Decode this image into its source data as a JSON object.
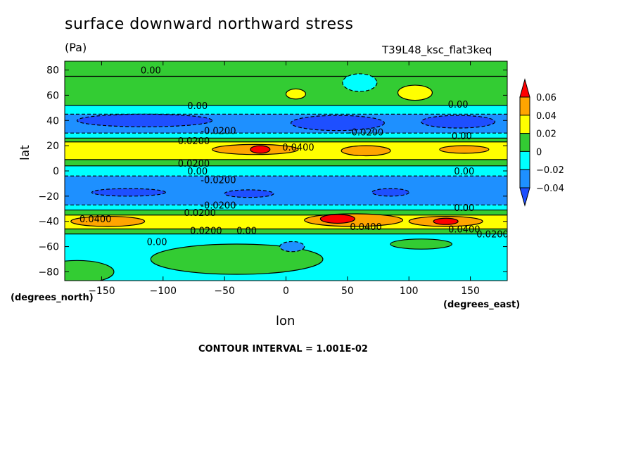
{
  "title": "surface downward northward stress",
  "units": "(Pa)",
  "dataset": "T39L48_ksc_flat3keq",
  "contour_interval": "CONTOUR INTERVAL = 1.001E-02",
  "chart_data": {
    "type": "heatmap",
    "title": "surface downward northward stress",
    "xlabel": "lon",
    "ylabel": "lat",
    "x_units_note": "(degrees_east)",
    "y_units_note": "(degrees_north)",
    "xlim": [
      -180,
      180
    ],
    "ylim": [
      -87,
      87
    ],
    "xticks": [
      -150,
      -100,
      -50,
      0,
      50,
      100,
      150
    ],
    "yticks": [
      -80,
      -60,
      -40,
      -20,
      0,
      20,
      40,
      60,
      80
    ],
    "colorbar": {
      "levels": [
        "0.06",
        "0.04",
        "0.02",
        "0",
        "-0.02",
        "-0.04"
      ],
      "colors": [
        "#ff0000",
        "#ffa500",
        "#ffff00",
        "#33cc33",
        "#00ffff",
        "#1e90ff",
        "#1e4fff"
      ]
    },
    "bands": [
      {
        "lat": [
          75,
          87
        ],
        "value": 0.005,
        "color": "#33cc33"
      },
      {
        "lat": [
          52,
          75
        ],
        "value": 0.008,
        "color": "#33cc33"
      },
      {
        "lat": [
          45,
          52
        ],
        "value": -0.01,
        "color": "#00ffff"
      },
      {
        "lat": [
          30,
          45
        ],
        "value": -0.03,
        "color": "#1e90ff"
      },
      {
        "lat": [
          26,
          30
        ],
        "value": -0.01,
        "color": "#00ffff"
      },
      {
        "lat": [
          23,
          26
        ],
        "value": 0.01,
        "color": "#33cc33"
      },
      {
        "lat": [
          9,
          23
        ],
        "value": 0.03,
        "color": "#ffff00"
      },
      {
        "lat": [
          4,
          9
        ],
        "value": 0.01,
        "color": "#33cc33"
      },
      {
        "lat": [
          -4,
          4
        ],
        "value": -0.01,
        "color": "#00ffff"
      },
      {
        "lat": [
          -27,
          -4
        ],
        "value": -0.03,
        "color": "#1e90ff"
      },
      {
        "lat": [
          -31,
          -27
        ],
        "value": -0.01,
        "color": "#00ffff"
      },
      {
        "lat": [
          -35,
          -31
        ],
        "value": 0.01,
        "color": "#33cc33"
      },
      {
        "lat": [
          -46,
          -35
        ],
        "value": 0.03,
        "color": "#ffff00"
      },
      {
        "lat": [
          -50,
          -46
        ],
        "value": 0.01,
        "color": "#33cc33"
      },
      {
        "lat": [
          -87,
          -50
        ],
        "value": -0.01,
        "color": "#00ffff"
      }
    ],
    "blobs": [
      {
        "lon": -115,
        "lat": 40,
        "rlon": 55,
        "rlat": 5,
        "value": -0.045,
        "color": "#1e4fff"
      },
      {
        "lon": 42,
        "lat": 38,
        "rlon": 38,
        "rlat": 6,
        "value": -0.045,
        "color": "#1e4fff"
      },
      {
        "lon": 140,
        "lat": 39,
        "rlon": 30,
        "rlat": 5,
        "value": -0.045,
        "color": "#1e4fff"
      },
      {
        "lon": -128,
        "lat": -17,
        "rlon": 30,
        "rlat": 3,
        "value": -0.045,
        "color": "#1e4fff"
      },
      {
        "lon": -30,
        "lat": -18,
        "rlon": 20,
        "rlat": 3,
        "value": -0.045,
        "color": "#1e4fff"
      },
      {
        "lon": 85,
        "lat": -17,
        "rlon": 15,
        "rlat": 3,
        "value": -0.045,
        "color": "#1e4fff"
      },
      {
        "lon": -25,
        "lat": 17,
        "rlon": 35,
        "rlat": 4,
        "value": 0.045,
        "color": "#ffa500"
      },
      {
        "lon": 65,
        "lat": 16,
        "rlon": 20,
        "rlat": 4,
        "value": 0.045,
        "color": "#ffa500"
      },
      {
        "lon": 145,
        "lat": 17,
        "rlon": 20,
        "rlat": 3,
        "value": 0.045,
        "color": "#ffa500"
      },
      {
        "lon": -145,
        "lat": -40,
        "rlon": 30,
        "rlat": 4,
        "value": 0.045,
        "color": "#ffa500"
      },
      {
        "lon": 55,
        "lat": -39,
        "rlon": 40,
        "rlat": 5,
        "value": 0.045,
        "color": "#ffa500"
      },
      {
        "lon": 130,
        "lat": -40,
        "rlon": 30,
        "rlat": 4,
        "value": 0.045,
        "color": "#ffa500"
      },
      {
        "lon": -21,
        "lat": 17,
        "rlon": 8,
        "rlat": 3,
        "value": 0.065,
        "color": "#ff0000"
      },
      {
        "lon": 42,
        "lat": -38,
        "rlon": 14,
        "rlat": 3.5,
        "value": 0.065,
        "color": "#ff0000"
      },
      {
        "lon": 130,
        "lat": -40,
        "rlon": 10,
        "rlat": 2.5,
        "value": 0.065,
        "color": "#ff0000"
      },
      {
        "lon": 60,
        "lat": 70,
        "rlon": 14,
        "rlat": 7,
        "value": -0.01,
        "color": "#00ffff"
      },
      {
        "lon": 105,
        "lat": 62,
        "rlon": 14,
        "rlat": 6,
        "value": 0.025,
        "color": "#ffff00"
      },
      {
        "lon": 8,
        "lat": 61,
        "rlon": 8,
        "rlat": 4,
        "value": 0.025,
        "color": "#ffff00"
      },
      {
        "lon": -40,
        "lat": -70,
        "rlon": 70,
        "rlat": 12,
        "value": 0.005,
        "color": "#33cc33"
      },
      {
        "lon": -170,
        "lat": -80,
        "rlon": 30,
        "rlat": 9,
        "value": 0.005,
        "color": "#33cc33"
      },
      {
        "lon": 5,
        "lat": -60,
        "rlon": 10,
        "rlat": 4,
        "value": -0.025,
        "color": "#1e90ff"
      },
      {
        "lon": 110,
        "lat": -58,
        "rlon": 25,
        "rlat": 4,
        "value": 0.005,
        "color": "#33cc33"
      }
    ],
    "contour_labels": [
      {
        "text": "0.00",
        "lon": -110,
        "lat": 80
      },
      {
        "text": "0.00",
        "lon": -72,
        "lat": 52
      },
      {
        "text": "-0.0200",
        "lon": -55,
        "lat": 32
      },
      {
        "text": "0.0200",
        "lon": -75,
        "lat": 24
      },
      {
        "text": "0.0400",
        "lon": 10,
        "lat": 19
      },
      {
        "text": "-0.0200",
        "lon": 65,
        "lat": 31
      },
      {
        "text": "0.00",
        "lon": 140,
        "lat": 53
      },
      {
        "text": "0.00",
        "lon": 143,
        "lat": 28
      },
      {
        "text": "0.0200",
        "lon": -75,
        "lat": 6
      },
      {
        "text": "0.00",
        "lon": -72,
        "lat": 0
      },
      {
        "text": "-0.0200",
        "lon": -55,
        "lat": -7
      },
      {
        "text": "0.00",
        "lon": 145,
        "lat": 0
      },
      {
        "text": "-0.0200",
        "lon": -55,
        "lat": -27
      },
      {
        "text": "0.0200",
        "lon": -70,
        "lat": -33
      },
      {
        "text": "0.0400",
        "lon": -155,
        "lat": -38
      },
      {
        "text": "0.0200",
        "lon": -65,
        "lat": -47
      },
      {
        "text": "0.00",
        "lon": -32,
        "lat": -47
      },
      {
        "text": "0.00",
        "lon": -105,
        "lat": -56
      },
      {
        "text": "0.0400",
        "lon": 65,
        "lat": -44
      },
      {
        "text": "0.00",
        "lon": 145,
        "lat": -29
      },
      {
        "text": "0.0400",
        "lon": 145,
        "lat": -46
      },
      {
        "text": "0.0200",
        "lon": 168,
        "lat": -50
      }
    ]
  }
}
